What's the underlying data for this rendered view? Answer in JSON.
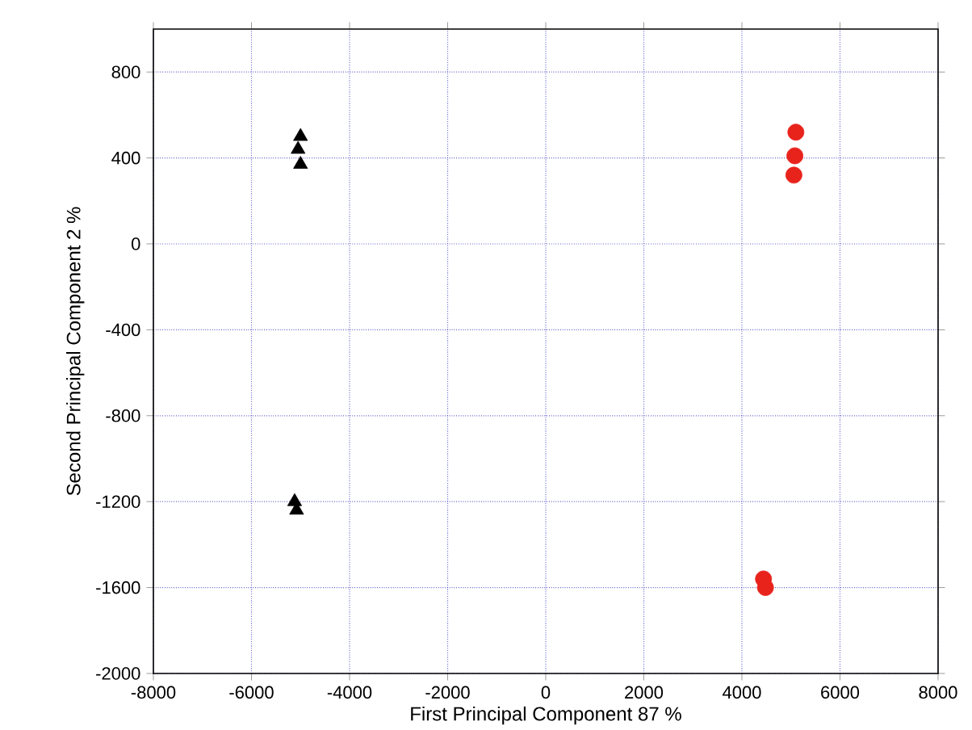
{
  "chart_data": {
    "type": "scatter",
    "xlabel": "First Principal Component 87 %",
    "ylabel": "Second Principal Component 2 %",
    "xlim": [
      -8000,
      8000
    ],
    "ylim": [
      -2000,
      1000
    ],
    "xticks": [
      -8000,
      -6000,
      -4000,
      -2000,
      0,
      2000,
      4000,
      6000,
      8000
    ],
    "yticks": [
      -2000,
      -1600,
      -1200,
      -800,
      -400,
      0,
      400,
      800
    ],
    "grid": true,
    "series": [
      {
        "color": "#000000",
        "marker": "triangle",
        "x": [
          -5000,
          -5050,
          -5000,
          -5120,
          -5080
        ],
        "values": [
          500,
          440,
          370,
          -1200,
          -1240
        ]
      },
      {
        "color": "#e8231c",
        "marker": "circle",
        "x": [
          5100,
          5080,
          5060,
          4440,
          4480
        ],
        "values": [
          520,
          410,
          320,
          -1560,
          -1600
        ]
      }
    ]
  }
}
